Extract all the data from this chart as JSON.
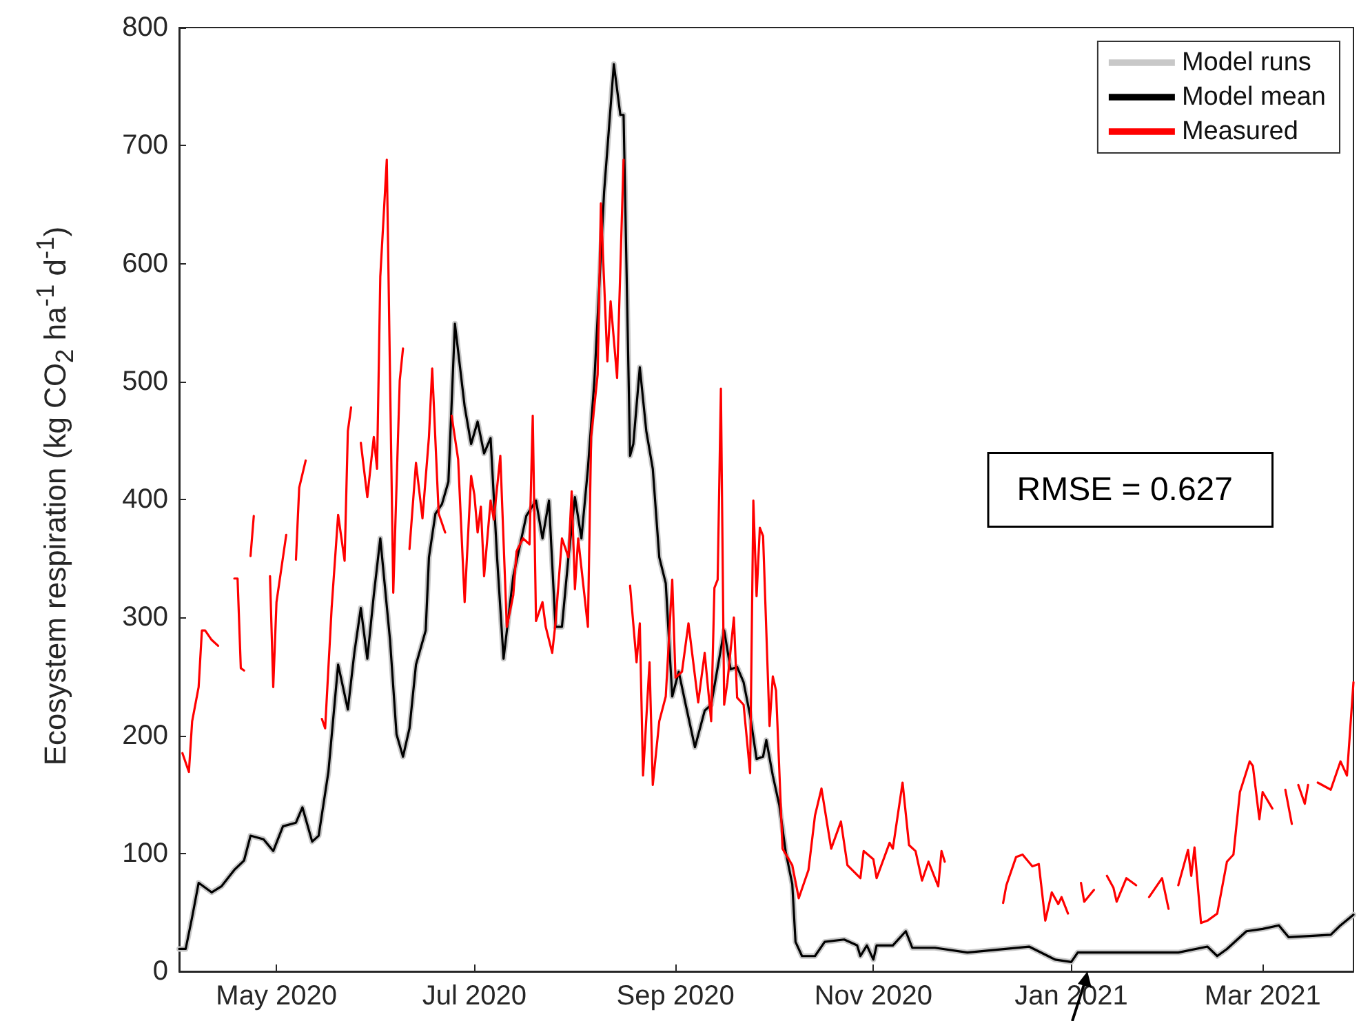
{
  "chart_data": {
    "type": "line",
    "ylabel": "Ecosystem respiration (kg CO$_{2}$ ha$^{-1}$ d$^{-1}$)",
    "annotations": [
      "RMSE = 0.627"
    ],
    "xlim": [
      "2020-04-01",
      "2021-03-29"
    ],
    "ylim": [
      0,
      800
    ],
    "yticks": [
      0,
      100,
      200,
      300,
      400,
      500,
      600,
      700,
      800
    ],
    "xticks": [
      {
        "value": "2020-05-01",
        "label": "May 2020"
      },
      {
        "value": "2020-07-01",
        "label": "Jul 2020"
      },
      {
        "value": "2020-09-01",
        "label": "Sep 2020"
      },
      {
        "value": "2020-11-01",
        "label": "Nov 2020"
      },
      {
        "value": "2021-01-01",
        "label": "Jan 2021"
      },
      {
        "value": "2021-03-01",
        "label": "Mar 2021"
      }
    ],
    "legend": "top right",
    "grid": false,
    "marker": "none",
    "line_style": "solid",
    "series": [
      {
        "name": "Model runs",
        "color": "#c8c8c8",
        "x": [
          "2020-04-01",
          "2020-04-03",
          "2020-04-05",
          "2020-04-07",
          "2020-04-11",
          "2020-04-14",
          "2020-04-18",
          "2020-04-21",
          "2020-04-23",
          "2020-04-27",
          "2020-04-30",
          "2020-05-03",
          "2020-05-07",
          "2020-05-09",
          "2020-05-12",
          "2020-05-14",
          "2020-05-17",
          "2020-05-20",
          "2020-05-23",
          "2020-05-25",
          "2020-05-27",
          "2020-05-29",
          "2020-05-31",
          "2020-06-02",
          "2020-06-05",
          "2020-06-07",
          "2020-06-09",
          "2020-06-11",
          "2020-06-13",
          "2020-06-16",
          "2020-06-17",
          "2020-06-19",
          "2020-06-21",
          "2020-06-23",
          "2020-06-25",
          "2020-06-28",
          "2020-06-30",
          "2020-07-02",
          "2020-07-04",
          "2020-07-06",
          "2020-07-08",
          "2020-07-10",
          "2020-07-13",
          "2020-07-17",
          "2020-07-20",
          "2020-07-22",
          "2020-07-24",
          "2020-07-26",
          "2020-07-28",
          "2020-07-30",
          "2020-08-01",
          "2020-08-03",
          "2020-08-05",
          "2020-08-07",
          "2020-08-10",
          "2020-08-13",
          "2020-08-15",
          "2020-08-16",
          "2020-08-18",
          "2020-08-19",
          "2020-08-21",
          "2020-08-23",
          "2020-08-25",
          "2020-08-27",
          "2020-08-29",
          "2020-08-31",
          "2020-09-02",
          "2020-09-04",
          "2020-09-07",
          "2020-09-10",
          "2020-09-12",
          "2020-09-16",
          "2020-09-18",
          "2020-09-20",
          "2020-09-22",
          "2020-09-24",
          "2020-09-26",
          "2020-09-28",
          "2020-09-29",
          "2020-10-01",
          "2020-10-03",
          "2020-10-05",
          "2020-10-07",
          "2020-10-08",
          "2020-10-10",
          "2020-10-14",
          "2020-10-17",
          "2020-10-23",
          "2020-10-27",
          "2020-10-28",
          "2020-10-30",
          "2020-11-01",
          "2020-11-02",
          "2020-11-07",
          "2020-11-11",
          "2020-11-13",
          "2020-11-20",
          "2020-11-30",
          "2020-12-19",
          "2020-12-27",
          "2021-01-01",
          "2021-01-03",
          "2021-02-03",
          "2021-02-12",
          "2021-02-15",
          "2021-02-18",
          "2021-02-24",
          "2021-03-01",
          "2021-03-06",
          "2021-03-09",
          "2021-03-22",
          "2021-03-25",
          "2021-03-29"
        ],
        "values": [
          19,
          19,
          46,
          75,
          67,
          72,
          86,
          94,
          115,
          112,
          102,
          123,
          126,
          139,
          110,
          115,
          169,
          260,
          222,
          270,
          308,
          265,
          319,
          367,
          281,
          201,
          182,
          206,
          260,
          289,
          351,
          388,
          396,
          415,
          549,
          479,
          447,
          466,
          439,
          452,
          351,
          265,
          335,
          386,
          399,
          367,
          399,
          292,
          292,
          351,
          402,
          367,
          426,
          501,
          661,
          769,
          726,
          726,
          437,
          447,
          512,
          458,
          426,
          351,
          329,
          233,
          254,
          228,
          190,
          221,
          226,
          289,
          256,
          258,
          245,
          217,
          180,
          182,
          196,
          166,
          141,
          101,
          74,
          25,
          13,
          13,
          25,
          27,
          22,
          13,
          22,
          10,
          22,
          22,
          34,
          20,
          20,
          16,
          21,
          10,
          8,
          16,
          16,
          21,
          13,
          19,
          34,
          36,
          39,
          29,
          31,
          39,
          48
        ]
      },
      {
        "name": "Model mean",
        "color": "#000000",
        "x": [
          "2020-04-01",
          "2020-04-03",
          "2020-04-05",
          "2020-04-07",
          "2020-04-11",
          "2020-04-14",
          "2020-04-18",
          "2020-04-21",
          "2020-04-23",
          "2020-04-27",
          "2020-04-30",
          "2020-05-03",
          "2020-05-07",
          "2020-05-09",
          "2020-05-12",
          "2020-05-14",
          "2020-05-17",
          "2020-05-20",
          "2020-05-23",
          "2020-05-25",
          "2020-05-27",
          "2020-05-29",
          "2020-05-31",
          "2020-06-02",
          "2020-06-05",
          "2020-06-07",
          "2020-06-09",
          "2020-06-11",
          "2020-06-13",
          "2020-06-16",
          "2020-06-17",
          "2020-06-19",
          "2020-06-21",
          "2020-06-23",
          "2020-06-25",
          "2020-06-28",
          "2020-06-30",
          "2020-07-02",
          "2020-07-04",
          "2020-07-06",
          "2020-07-08",
          "2020-07-10",
          "2020-07-13",
          "2020-07-17",
          "2020-07-20",
          "2020-07-22",
          "2020-07-24",
          "2020-07-26",
          "2020-07-28",
          "2020-07-30",
          "2020-08-01",
          "2020-08-03",
          "2020-08-05",
          "2020-08-07",
          "2020-08-10",
          "2020-08-13",
          "2020-08-15",
          "2020-08-16",
          "2020-08-18",
          "2020-08-19",
          "2020-08-21",
          "2020-08-23",
          "2020-08-25",
          "2020-08-27",
          "2020-08-29",
          "2020-08-31",
          "2020-09-02",
          "2020-09-04",
          "2020-09-07",
          "2020-09-10",
          "2020-09-12",
          "2020-09-16",
          "2020-09-18",
          "2020-09-20",
          "2020-09-22",
          "2020-09-24",
          "2020-09-26",
          "2020-09-28",
          "2020-09-29",
          "2020-10-01",
          "2020-10-03",
          "2020-10-05",
          "2020-10-07",
          "2020-10-08",
          "2020-10-10",
          "2020-10-14",
          "2020-10-17",
          "2020-10-23",
          "2020-10-27",
          "2020-10-28",
          "2020-10-30",
          "2020-11-01",
          "2020-11-02",
          "2020-11-07",
          "2020-11-11",
          "2020-11-13",
          "2020-11-20",
          "2020-11-30",
          "2020-12-19",
          "2020-12-27",
          "2021-01-01",
          "2021-01-03",
          "2021-02-03",
          "2021-02-12",
          "2021-02-15",
          "2021-02-18",
          "2021-02-24",
          "2021-03-01",
          "2021-03-06",
          "2021-03-09",
          "2021-03-22",
          "2021-03-25",
          "2021-03-29"
        ],
        "values": [
          19,
          19,
          46,
          75,
          67,
          72,
          86,
          94,
          115,
          112,
          102,
          123,
          126,
          139,
          110,
          115,
          169,
          260,
          222,
          270,
          308,
          265,
          319,
          367,
          281,
          201,
          182,
          206,
          260,
          289,
          351,
          388,
          396,
          415,
          549,
          479,
          447,
          466,
          439,
          452,
          351,
          265,
          335,
          386,
          399,
          367,
          399,
          292,
          292,
          351,
          402,
          367,
          426,
          501,
          661,
          769,
          726,
          726,
          437,
          447,
          512,
          458,
          426,
          351,
          329,
          233,
          254,
          228,
          190,
          221,
          226,
          289,
          256,
          258,
          245,
          217,
          180,
          182,
          196,
          166,
          141,
          101,
          74,
          25,
          13,
          13,
          25,
          27,
          22,
          13,
          22,
          10,
          22,
          22,
          34,
          20,
          20,
          16,
          21,
          10,
          8,
          16,
          16,
          21,
          13,
          19,
          34,
          36,
          39,
          29,
          31,
          39,
          48
        ]
      },
      {
        "name": "Measured",
        "color": "#ff0000",
        "x": [
          "2020-04-02",
          "2020-04-04",
          "2020-04-05",
          "2020-04-07",
          "2020-04-08",
          "2020-04-09",
          "2020-04-11",
          "2020-04-13",
          "2020-04-15",
          "2020-04-18",
          "2020-04-19",
          "2020-04-20",
          "2020-04-21",
          "2020-04-22",
          "2020-04-23",
          "2020-04-24",
          "2020-04-26",
          "2020-04-29",
          "2020-04-30",
          "2020-05-01",
          "2020-05-04",
          "2020-05-05",
          "2020-05-07",
          "2020-05-08",
          "2020-05-10",
          "2020-05-12",
          "2020-05-15",
          "2020-05-16",
          "2020-05-18",
          "2020-05-20",
          "2020-05-22",
          "2020-05-23",
          "2020-05-24",
          "2020-05-25",
          "2020-05-27",
          "2020-05-29",
          "2020-05-31",
          "2020-06-01",
          "2020-06-02",
          "2020-06-04",
          "2020-06-06",
          "2020-06-08",
          "2020-06-09",
          "2020-06-10",
          "2020-06-11",
          "2020-06-13",
          "2020-06-15",
          "2020-06-17",
          "2020-06-18",
          "2020-06-20",
          "2020-06-22",
          "2020-06-23",
          "2020-06-24",
          "2020-06-26",
          "2020-06-28",
          "2020-06-30",
          "2020-07-01",
          "2020-07-02",
          "2020-07-03",
          "2020-07-04",
          "2020-07-06",
          "2020-07-07",
          "2020-07-09",
          "2020-07-11",
          "2020-07-13",
          "2020-07-14",
          "2020-07-16",
          "2020-07-18",
          "2020-07-19",
          "2020-07-20",
          "2020-07-22",
          "2020-07-23",
          "2020-07-25",
          "2020-07-26",
          "2020-07-28",
          "2020-07-30",
          "2020-07-31",
          "2020-08-01",
          "2020-08-02",
          "2020-08-05",
          "2020-08-06",
          "2020-08-08",
          "2020-08-09",
          "2020-08-11",
          "2020-08-12",
          "2020-08-14",
          "2020-08-16",
          "2020-08-17",
          "2020-08-18",
          "2020-08-20",
          "2020-08-21",
          "2020-08-22",
          "2020-08-24",
          "2020-08-25",
          "2020-08-27",
          "2020-08-29",
          "2020-08-31",
          "2020-09-01",
          "2020-09-03",
          "2020-09-05",
          "2020-09-08",
          "2020-09-10",
          "2020-09-12",
          "2020-09-13",
          "2020-09-14",
          "2020-09-15",
          "2020-09-16",
          "2020-09-17",
          "2020-09-19",
          "2020-09-20",
          "2020-09-22",
          "2020-09-24",
          "2020-09-25",
          "2020-09-26",
          "2020-09-27",
          "2020-09-28",
          "2020-09-30",
          "2020-10-01",
          "2020-10-02",
          "2020-10-04",
          "2020-10-07",
          "2020-10-09",
          "2020-10-12",
          "2020-10-14",
          "2020-10-16",
          "2020-10-19",
          "2020-10-22",
          "2020-10-24",
          "2020-10-28",
          "2020-10-29",
          "2020-11-01",
          "2020-11-02",
          "2020-11-06",
          "2020-11-07",
          "2020-11-10",
          "2020-11-12",
          "2020-11-14",
          "2020-11-16",
          "2020-11-18",
          "2020-11-21",
          "2020-11-22",
          "2020-11-23",
          "2020-12-01",
          "2020-12-11",
          "2020-12-12",
          "2020-12-15",
          "2020-12-17",
          "2020-12-20",
          "2020-12-22",
          "2020-12-24",
          "2020-12-26",
          "2020-12-28",
          "2020-12-29",
          "2020-12-31",
          "2021-01-02",
          "2021-01-04",
          "2021-01-05",
          "2021-01-08",
          "2021-01-10",
          "2021-01-12",
          "2021-01-14",
          "2021-01-15",
          "2021-01-18",
          "2021-01-20",
          "2021-01-21",
          "2021-01-23",
          "2021-01-25",
          "2021-01-29",
          "2021-01-31",
          "2021-02-02",
          "2021-02-03",
          "2021-02-06",
          "2021-02-07",
          "2021-02-08",
          "2021-02-10",
          "2021-02-12",
          "2021-02-15",
          "2021-02-18",
          "2021-02-20",
          "2021-02-22",
          "2021-02-25",
          "2021-02-26",
          "2021-02-28",
          "2021-03-01",
          "2021-03-04",
          "2021-03-06",
          "2021-03-08",
          "2021-03-10",
          "2021-03-11",
          "2021-03-12",
          "2021-03-14",
          "2021-03-15",
          "2021-03-16",
          "2021-03-18",
          "2021-03-22",
          "2021-03-25",
          "2021-03-27",
          "2021-03-29"
        ],
        "values": [
          185,
          169,
          212,
          241,
          289,
          289,
          281,
          276,
          null,
          333,
          333,
          257,
          255,
          null,
          352,
          386,
          null,
          335,
          241,
          313,
          370,
          null,
          349,
          410,
          433,
          null,
          214,
          206,
          308,
          387,
          348,
          458,
          478,
          null,
          448,
          402,
          453,
          426,
          589,
          688,
          321,
          501,
          528,
          null,
          358,
          431,
          384,
          453,
          511,
          388,
          372,
          null,
          471,
          434,
          313,
          420,
          404,
          372,
          394,
          335,
          399,
          383,
          437,
          292,
          319,
          356,
          367,
          362,
          471,
          297,
          313,
          292,
          270,
          295,
          367,
          351,
          407,
          324,
          367,
          292,
          453,
          506,
          651,
          517,
          568,
          503,
          688,
          null,
          327,
          262,
          295,
          166,
          262,
          158,
          212,
          233,
          332,
          249,
          254,
          295,
          228,
          270,
          212,
          325,
          332,
          494,
          226,
          245,
          300,
          232,
          226,
          168,
          399,
          318,
          376,
          369,
          208,
          250,
          238,
          104,
          90,
          62,
          86,
          132,
          155,
          104,
          127,
          90,
          79,
          102,
          95,
          79,
          109,
          104,
          160,
          107,
          102,
          77,
          93,
          72,
          102,
          93,
          null,
          58,
          73,
          97,
          99,
          89,
          91,
          43,
          67,
          57,
          63,
          49,
          null,
          75,
          59,
          69,
          null,
          81,
          71,
          59,
          79,
          75,
          73,
          null,
          63,
          79,
          53,
          null,
          73,
          103,
          81,
          105,
          41,
          43,
          49,
          93,
          99,
          152,
          178,
          174,
          129,
          152,
          138,
          null,
          154,
          125,
          null,
          158,
          142,
          158,
          null,
          160,
          154,
          178,
          166,
          245
        ]
      }
    ]
  }
}
